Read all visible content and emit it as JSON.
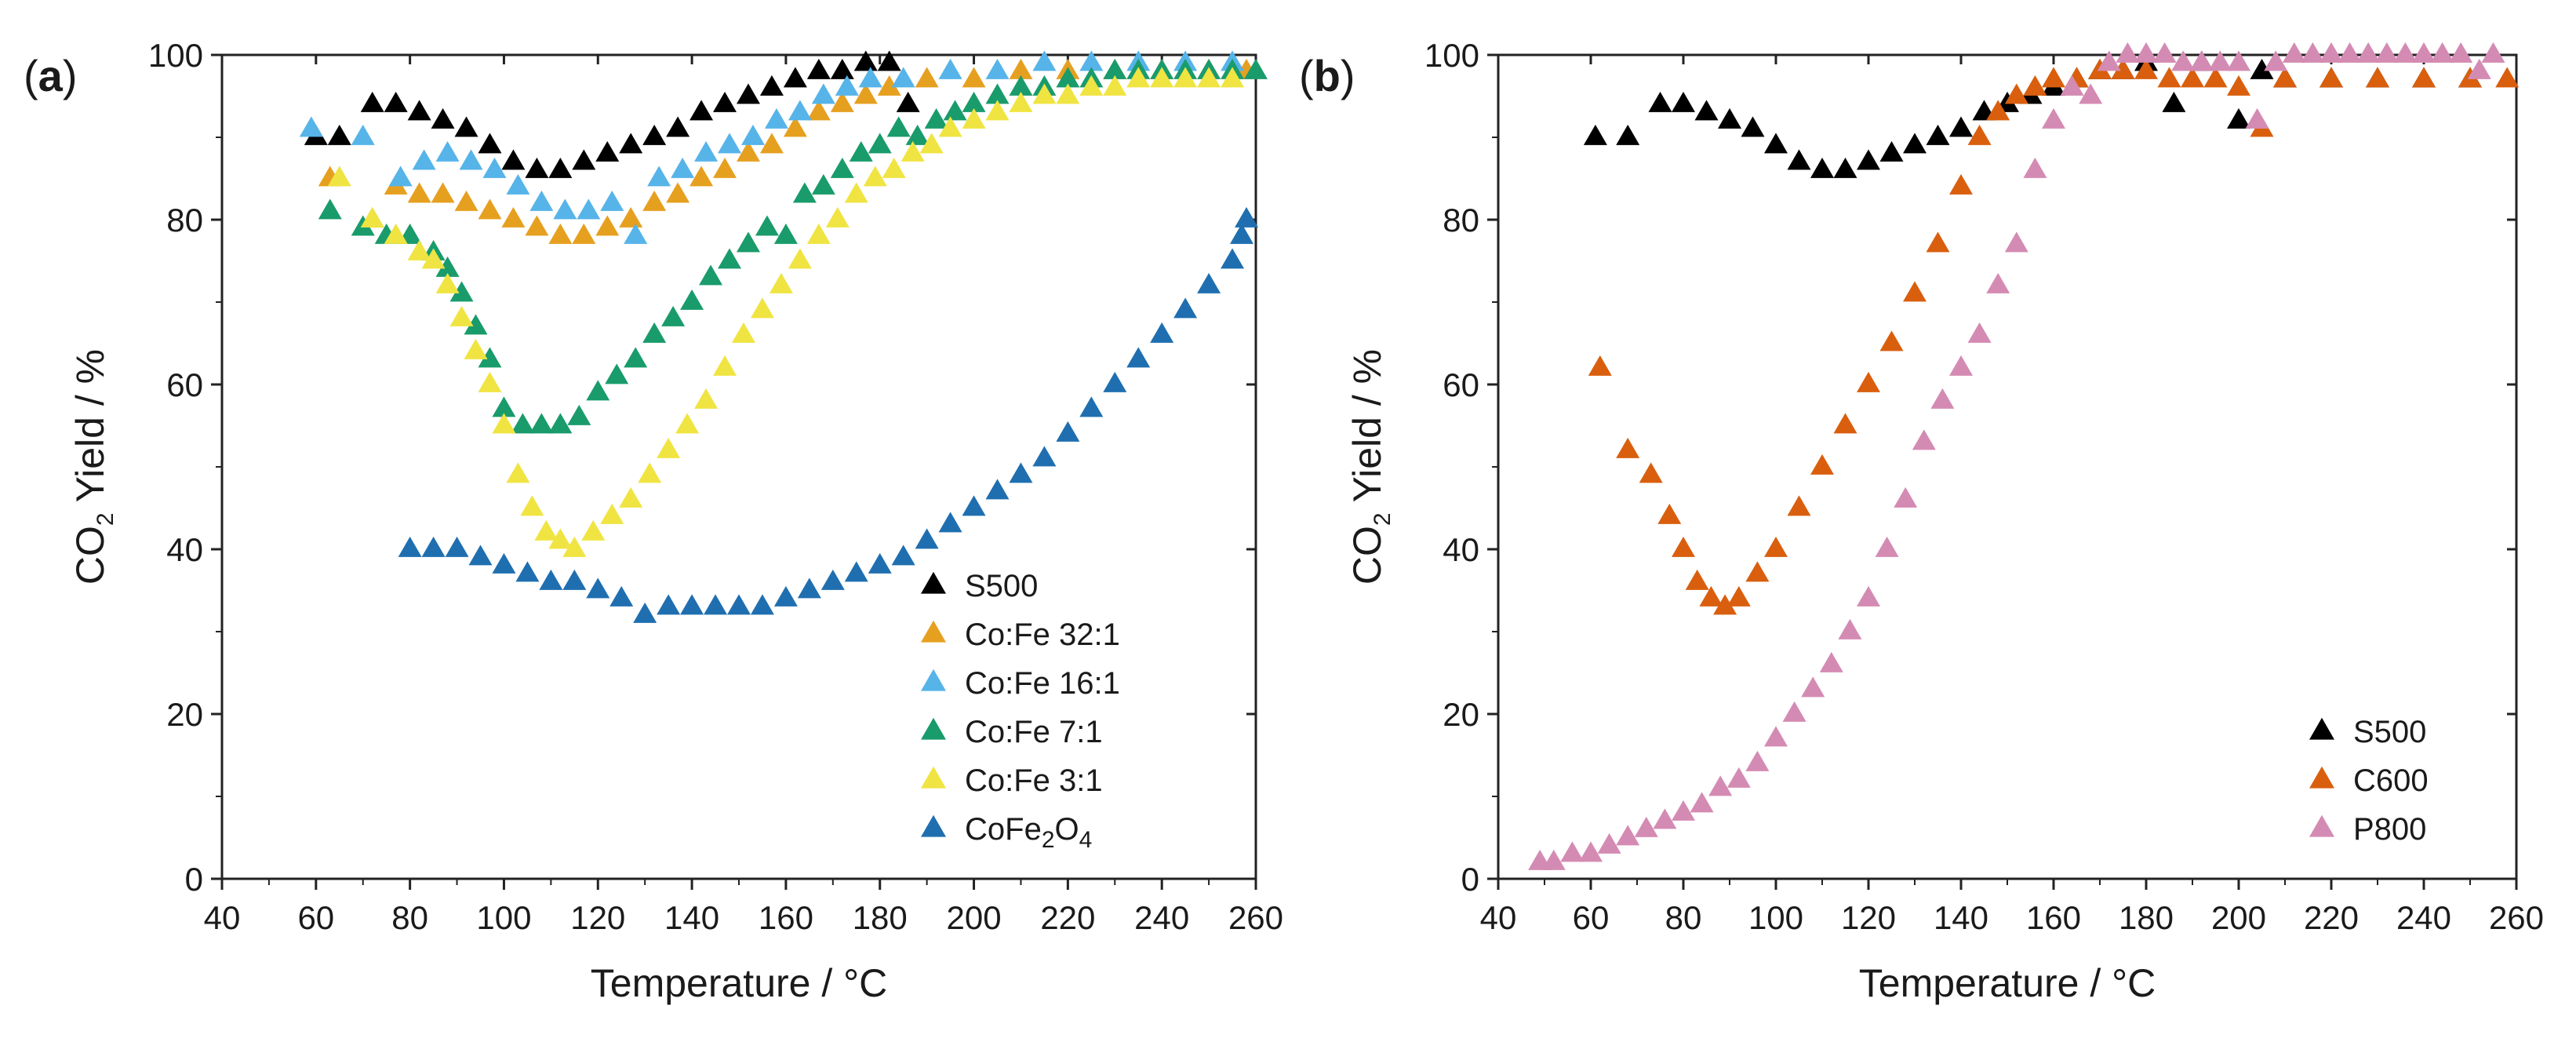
{
  "chart_data": [
    {
      "type": "scatter",
      "panel_label": "a",
      "title": "",
      "xlabel": "Temperature / °C",
      "ylabel_parts": [
        "CO",
        "2",
        " Yield / %"
      ],
      "xlim": [
        40,
        260
      ],
      "ylim": [
        0,
        100
      ],
      "xticks": [
        40,
        60,
        80,
        100,
        120,
        140,
        160,
        180,
        200,
        220,
        240,
        260
      ],
      "yticks": [
        0,
        20,
        40,
        60,
        80,
        100
      ],
      "grid": false,
      "legend_position": "bottom-right",
      "marker": "triangle",
      "series": [
        {
          "name": "S500",
          "name_sub": "",
          "name_tail": "",
          "color": "#000000",
          "x": [
            60,
            65,
            72,
            77,
            82,
            87,
            92,
            97,
            102,
            107,
            112,
            117,
            122,
            127,
            132,
            137,
            142,
            147,
            152,
            157,
            162,
            167,
            172,
            177,
            182,
            186
          ],
          "y": [
            90,
            90,
            94,
            94,
            93,
            92,
            91,
            89,
            87,
            86,
            86,
            87,
            88,
            89,
            90,
            91,
            93,
            94,
            95,
            96,
            97,
            98,
            98,
            99,
            99,
            94
          ]
        },
        {
          "name": "Co:Fe 32:1",
          "name_sub": "",
          "name_tail": "",
          "color": "#e6a020",
          "x": [
            63,
            72,
            77,
            82,
            87,
            92,
            97,
            102,
            107,
            112,
            117,
            122,
            127,
            132,
            137,
            142,
            147,
            152,
            157,
            162,
            167,
            172,
            177,
            182,
            190,
            200,
            210,
            220,
            230,
            240,
            250,
            258
          ],
          "y": [
            85,
            80,
            84,
            83,
            83,
            82,
            81,
            80,
            79,
            78,
            78,
            79,
            80,
            82,
            83,
            85,
            86,
            88,
            89,
            91,
            93,
            94,
            95,
            96,
            97,
            97,
            98,
            98,
            98,
            98,
            98,
            98
          ]
        },
        {
          "name": "Co:Fe 16:1",
          "name_sub": "",
          "name_tail": "",
          "color": "#56b4e9",
          "x": [
            59,
            70,
            78,
            83,
            88,
            93,
            98,
            103,
            108,
            113,
            118,
            123,
            128,
            133,
            138,
            143,
            148,
            153,
            158,
            163,
            168,
            173,
            178,
            185,
            195,
            205,
            215,
            225,
            235,
            245,
            255
          ],
          "y": [
            91,
            90,
            85,
            87,
            88,
            87,
            86,
            84,
            82,
            81,
            81,
            82,
            78,
            85,
            86,
            88,
            89,
            90,
            92,
            93,
            95,
            96,
            97,
            97,
            98,
            98,
            99,
            99,
            99,
            99,
            99
          ]
        },
        {
          "name": "Co:Fe 7:1",
          "name_sub": "",
          "name_tail": "",
          "color": "#1a9b6c",
          "x": [
            63,
            70,
            75,
            80,
            85,
            88,
            91,
            94,
            97,
            100,
            104,
            108,
            112,
            116,
            120,
            124,
            128,
            132,
            136,
            140,
            144,
            148,
            152,
            156,
            160,
            164,
            168,
            172,
            176,
            180,
            184,
            188,
            192,
            196,
            200,
            205,
            210,
            215,
            220,
            225,
            230,
            235,
            240,
            245,
            250,
            255,
            260
          ],
          "y": [
            81,
            79,
            78,
            78,
            76,
            74,
            71,
            67,
            63,
            57,
            55,
            55,
            55,
            56,
            59,
            61,
            63,
            66,
            68,
            70,
            73,
            75,
            77,
            79,
            78,
            83,
            84,
            86,
            88,
            89,
            91,
            90,
            92,
            93,
            94,
            95,
            96,
            96,
            97,
            97,
            98,
            98,
            98,
            98,
            98,
            98,
            98
          ]
        },
        {
          "name": "Co:Fe 3:1",
          "name_sub": "",
          "name_tail": "",
          "color": "#f0e442",
          "x": [
            65,
            72,
            77,
            82,
            85,
            88,
            91,
            94,
            97,
            100,
            103,
            106,
            109,
            112,
            115,
            119,
            123,
            127,
            131,
            135,
            139,
            143,
            147,
            151,
            155,
            159,
            163,
            167,
            171,
            175,
            179,
            183,
            187,
            191,
            195,
            200,
            205,
            210,
            215,
            220,
            225,
            230,
            235,
            240,
            245,
            250,
            255
          ],
          "y": [
            85,
            80,
            78,
            76,
            75,
            72,
            68,
            64,
            60,
            55,
            49,
            45,
            42,
            41,
            40,
            42,
            44,
            46,
            49,
            52,
            55,
            58,
            62,
            66,
            69,
            72,
            75,
            78,
            80,
            83,
            85,
            86,
            88,
            89,
            91,
            92,
            93,
            94,
            95,
            95,
            96,
            96,
            97,
            97,
            97,
            97,
            97
          ]
        },
        {
          "name": "CoFe",
          "name_sub": "2",
          "name_tail": "O",
          "name_sub2": "4",
          "color": "#1f6fb0",
          "x": [
            80,
            85,
            90,
            95,
            100,
            105,
            110,
            115,
            120,
            125,
            130,
            135,
            140,
            145,
            150,
            155,
            160,
            165,
            170,
            175,
            180,
            185,
            190,
            195,
            200,
            205,
            210,
            215,
            220,
            225,
            230,
            235,
            240,
            245,
            250,
            255,
            257,
            258
          ],
          "y": [
            40,
            40,
            40,
            39,
            38,
            37,
            36,
            36,
            35,
            34,
            32,
            33,
            33,
            33,
            33,
            33,
            34,
            35,
            36,
            37,
            38,
            39,
            41,
            43,
            45,
            47,
            49,
            51,
            54,
            57,
            60,
            63,
            66,
            69,
            72,
            75,
            78,
            80
          ]
        }
      ]
    },
    {
      "type": "scatter",
      "panel_label": "b",
      "title": "",
      "xlabel": "Temperature / °C",
      "ylabel_parts": [
        "CO",
        "2",
        " Yield / %"
      ],
      "xlim": [
        40,
        260
      ],
      "ylim": [
        0,
        100
      ],
      "xticks": [
        40,
        60,
        80,
        100,
        120,
        140,
        160,
        180,
        200,
        220,
        240,
        260
      ],
      "yticks": [
        0,
        20,
        40,
        60,
        80,
        100
      ],
      "grid": false,
      "legend_position": "bottom-right",
      "marker": "triangle",
      "series": [
        {
          "name": "S500",
          "color": "#000000",
          "x": [
            61,
            68,
            75,
            80,
            85,
            90,
            95,
            100,
            105,
            110,
            115,
            120,
            125,
            130,
            135,
            140,
            145,
            150,
            155,
            160,
            165,
            170,
            175,
            180,
            186,
            192,
            200,
            205,
            210,
            220,
            230,
            240,
            250
          ],
          "y": [
            90,
            90,
            94,
            94,
            93,
            92,
            91,
            89,
            87,
            86,
            86,
            87,
            88,
            89,
            90,
            91,
            93,
            94,
            95,
            96,
            97,
            98,
            98,
            99,
            94,
            99,
            92,
            98,
            97,
            97,
            97,
            97,
            97
          ]
        },
        {
          "name": "C600",
          "color": "#d95f0e",
          "x": [
            62,
            68,
            73,
            77,
            80,
            83,
            86,
            89,
            92,
            96,
            100,
            105,
            110,
            115,
            120,
            125,
            130,
            135,
            140,
            144,
            148,
            152,
            156,
            160,
            165,
            170,
            175,
            180,
            185,
            190,
            195,
            200,
            205,
            210,
            220,
            230,
            240,
            250,
            258
          ],
          "y": [
            62,
            52,
            49,
            44,
            40,
            36,
            34,
            33,
            34,
            37,
            40,
            45,
            50,
            55,
            60,
            65,
            71,
            77,
            84,
            90,
            93,
            95,
            96,
            97,
            97,
            98,
            98,
            98,
            97,
            97,
            97,
            96,
            91,
            97,
            97,
            97,
            97,
            97,
            97
          ]
        },
        {
          "name": "P800",
          "color": "#d48bb3",
          "x": [
            49,
            52,
            56,
            60,
            64,
            68,
            72,
            76,
            80,
            84,
            88,
            92,
            96,
            100,
            104,
            108,
            112,
            116,
            120,
            124,
            128,
            132,
            136,
            140,
            144,
            148,
            152,
            156,
            160,
            164,
            168,
            172,
            176,
            180,
            184,
            188,
            192,
            196,
            200,
            204,
            208,
            212,
            216,
            220,
            224,
            228,
            232,
            236,
            240,
            244,
            248,
            252,
            255
          ],
          "y": [
            2,
            2,
            3,
            3,
            4,
            5,
            6,
            7,
            8,
            9,
            11,
            12,
            14,
            17,
            20,
            23,
            26,
            30,
            34,
            40,
            46,
            53,
            58,
            62,
            66,
            72,
            77,
            86,
            92,
            96,
            95,
            99,
            100,
            100,
            100,
            99,
            99,
            99,
            99,
            92,
            99,
            100,
            100,
            100,
            100,
            100,
            100,
            100,
            100,
            100,
            100,
            98,
            100
          ]
        }
      ]
    }
  ]
}
